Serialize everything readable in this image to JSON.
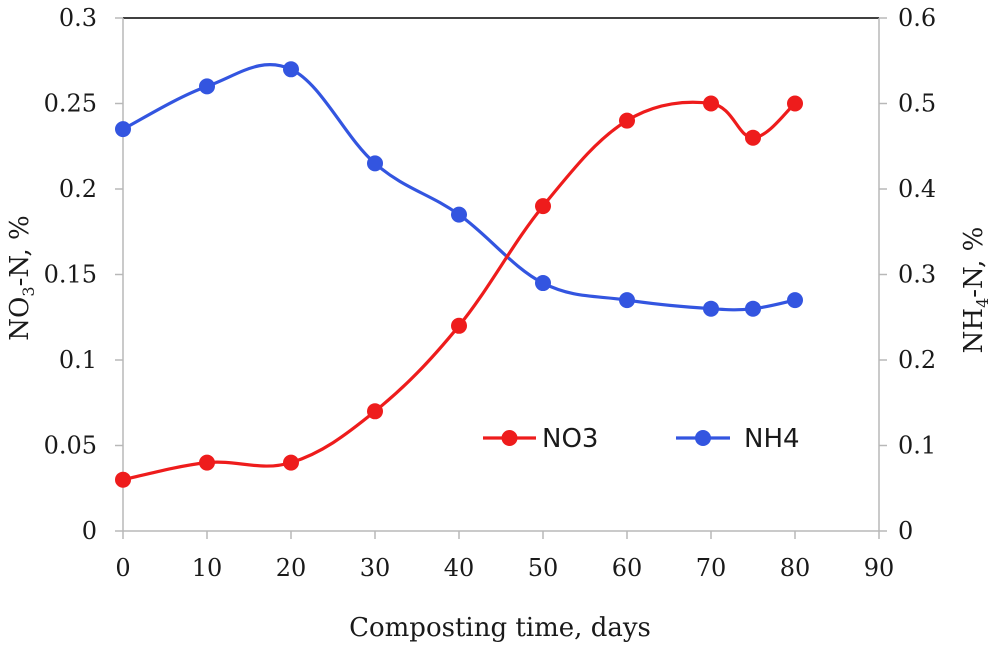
{
  "chart_data": {
    "type": "line",
    "x": [
      0,
      10,
      20,
      30,
      40,
      50,
      60,
      70,
      75,
      80
    ],
    "xlabel": "Composting time, days",
    "xlim": [
      0,
      90
    ],
    "xticks": [
      "0",
      "10",
      "20",
      "30",
      "40",
      "50",
      "60",
      "70",
      "80",
      "90"
    ],
    "ylabel_left": {
      "main": "NO",
      "sub": "3",
      "rest": "-N, %"
    },
    "ylim_left": [
      0,
      0.3
    ],
    "yticks_left": [
      "0",
      "0.05",
      "0.1",
      "0.15",
      "0.2",
      "0.25",
      "0.3"
    ],
    "ylabel_right": {
      "main": "NH",
      "sub": "4",
      "rest": "-N, %"
    },
    "ylim_right": [
      0,
      0.6
    ],
    "yticks_right": [
      "0",
      "0.1",
      "0.2",
      "0.3",
      "0.4",
      "0.5",
      "0.6"
    ],
    "series": [
      {
        "name": "NO3",
        "axis": "left",
        "color": "#ee1c1c",
        "values": [
          0.03,
          0.04,
          0.04,
          0.07,
          0.12,
          0.19,
          0.24,
          0.25,
          0.23,
          0.25
        ]
      },
      {
        "name": "NH4",
        "axis": "right",
        "color": "#3355e0",
        "values": [
          0.47,
          0.52,
          0.54,
          0.43,
          0.37,
          0.29,
          0.27,
          0.26,
          0.26,
          0.27
        ]
      }
    ],
    "legend": "inside-lower-center",
    "grid": false
  }
}
